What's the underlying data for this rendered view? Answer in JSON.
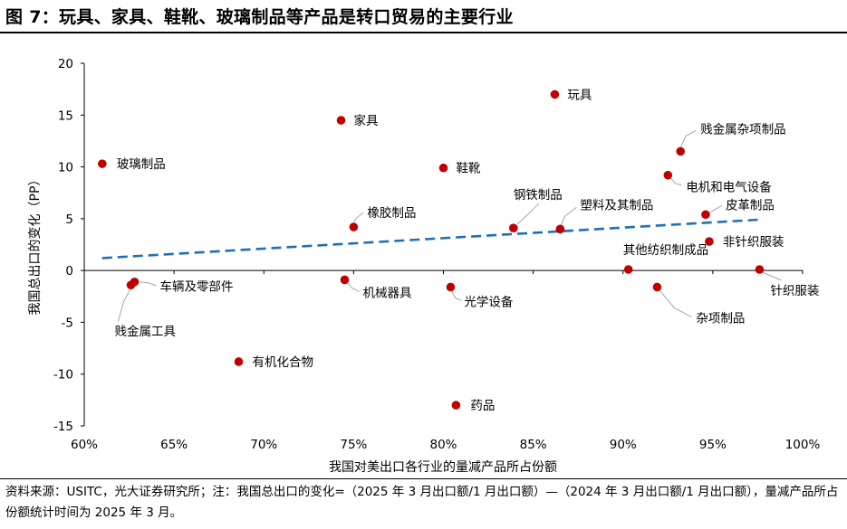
{
  "figure": {
    "title": "图 7：玩具、家具、鞋靴、玻璃制品等产品是转口贸易的主要行业",
    "source_note": "资料来源：USITC，光大证券研究所；注：我国总出口的变化=（2025 年 3 月出口额/1 月出口额）—（2024 年 3 月出口额/1 月出口额），量减产品所占份额统计时间为 2025 年 3 月。"
  },
  "chart_data": {
    "type": "scatter",
    "xlabel": "我国对美出口各行业的量减产品所占份额",
    "ylabel": "我国总出口的变化（PP）",
    "xlim": [
      60,
      100
    ],
    "ylim": [
      -15,
      20
    ],
    "x_ticks": [
      "60%",
      "65%",
      "70%",
      "75%",
      "80%",
      "85%",
      "90%",
      "95%",
      "100%"
    ],
    "y_ticks": [
      "20",
      "15",
      "10",
      "5",
      "0",
      "-5",
      "-10",
      "-15"
    ],
    "grid": false,
    "marker_color": "#c00000",
    "trendline": {
      "style": "dashed",
      "color": "#1f6fb5",
      "x": [
        61,
        97.5
      ],
      "y": [
        1.2,
        4.9
      ]
    },
    "points": [
      {
        "name": "玩具",
        "x": 86.2,
        "y": 17.0
      },
      {
        "name": "家具",
        "x": 74.3,
        "y": 14.5
      },
      {
        "name": "玻璃制品",
        "x": 61.0,
        "y": 10.3
      },
      {
        "name": "鞋靴",
        "x": 80.0,
        "y": 9.9
      },
      {
        "name": "贱金属杂项制品",
        "x": 93.2,
        "y": 11.5
      },
      {
        "name": "电机和电气设备",
        "x": 92.5,
        "y": 9.2
      },
      {
        "name": "钢铁制品",
        "x": 83.9,
        "y": 4.1
      },
      {
        "name": "塑料及其制品",
        "x": 86.5,
        "y": 4.0
      },
      {
        "name": "橡胶制品",
        "x": 75.0,
        "y": 4.2
      },
      {
        "name": "皮革制品",
        "x": 94.6,
        "y": 5.4
      },
      {
        "name": "非针织服装",
        "x": 94.8,
        "y": 2.8
      },
      {
        "name": "其他纺织制成品",
        "x": 90.3,
        "y": 0.1
      },
      {
        "name": "针织服装",
        "x": 97.6,
        "y": 0.1
      },
      {
        "name": "车辆及零部件",
        "x": 62.8,
        "y": -1.1
      },
      {
        "name": "贱金属工具",
        "x": 62.6,
        "y": -1.4
      },
      {
        "name": "机械器具",
        "x": 74.5,
        "y": -0.9
      },
      {
        "name": "光学设备",
        "x": 80.4,
        "y": -1.6
      },
      {
        "name": "杂项制品",
        "x": 91.9,
        "y": -1.6
      },
      {
        "name": "有机化合物",
        "x": 68.6,
        "y": -8.8
      },
      {
        "name": "药品",
        "x": 80.7,
        "y": -13.0
      }
    ]
  }
}
